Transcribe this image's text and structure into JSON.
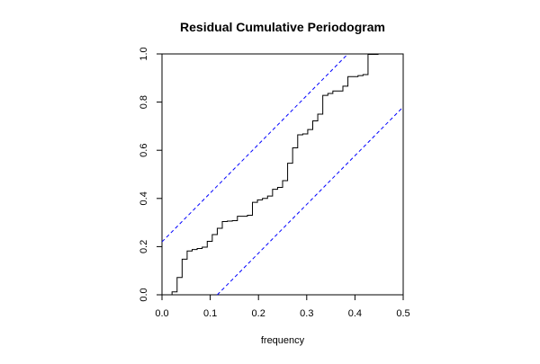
{
  "chart_data": {
    "type": "line",
    "title": "Residual Cumulative Periodogram",
    "xlabel": "frequency",
    "ylabel": "",
    "xlim": [
      0,
      0.5
    ],
    "ylim": [
      0,
      1
    ],
    "x_ticks": [
      "0.0",
      "0.1",
      "0.2",
      "0.3",
      "0.4",
      "0.5"
    ],
    "y_ticks": [
      "0.0",
      "0.2",
      "0.4",
      "0.6",
      "0.8",
      "1.0"
    ],
    "grid": false,
    "series": [
      {
        "style": "step",
        "color": "#000000",
        "x": [
          0.0,
          0.0104,
          0.0208,
          0.0313,
          0.0417,
          0.0521,
          0.0625,
          0.0729,
          0.0833,
          0.0938,
          0.1042,
          0.1146,
          0.125,
          0.1354,
          0.1458,
          0.1563,
          0.1667,
          0.1771,
          0.1875,
          0.1979,
          0.2083,
          0.2188,
          0.2292,
          0.2396,
          0.25,
          0.2604,
          0.2708,
          0.2813,
          0.2917,
          0.3021,
          0.3125,
          0.3229,
          0.3333,
          0.3438,
          0.3542,
          0.3646,
          0.375,
          0.3854,
          0.3958,
          0.4063,
          0.4167,
          0.4271,
          0.4375,
          0.4479,
          0.4583,
          0.4688,
          0.4792,
          0.4896,
          0.5
        ],
        "y": [
          0.0,
          0.0,
          0.012,
          0.072,
          0.148,
          0.182,
          0.188,
          0.192,
          0.198,
          0.222,
          0.25,
          0.276,
          0.304,
          0.306,
          0.308,
          0.326,
          0.326,
          0.33,
          0.384,
          0.394,
          0.4,
          0.41,
          0.438,
          0.446,
          0.474,
          0.546,
          0.61,
          0.664,
          0.668,
          0.686,
          0.722,
          0.75,
          0.828,
          0.836,
          0.846,
          0.846,
          0.866,
          0.906,
          0.906,
          0.91,
          0.914,
          0.998,
          0.998,
          1.0,
          1.0,
          1.0,
          1.0,
          1.0,
          1.0
        ]
      },
      {
        "style": "dashed",
        "color": "#0000ff",
        "x": [
          0.0,
          0.3854
        ],
        "y": [
          0.22,
          1.0
        ]
      },
      {
        "style": "dashed",
        "color": "#0000ff",
        "x": [
          0.1146,
          0.5
        ],
        "y": [
          0.0,
          0.78
        ]
      }
    ]
  }
}
